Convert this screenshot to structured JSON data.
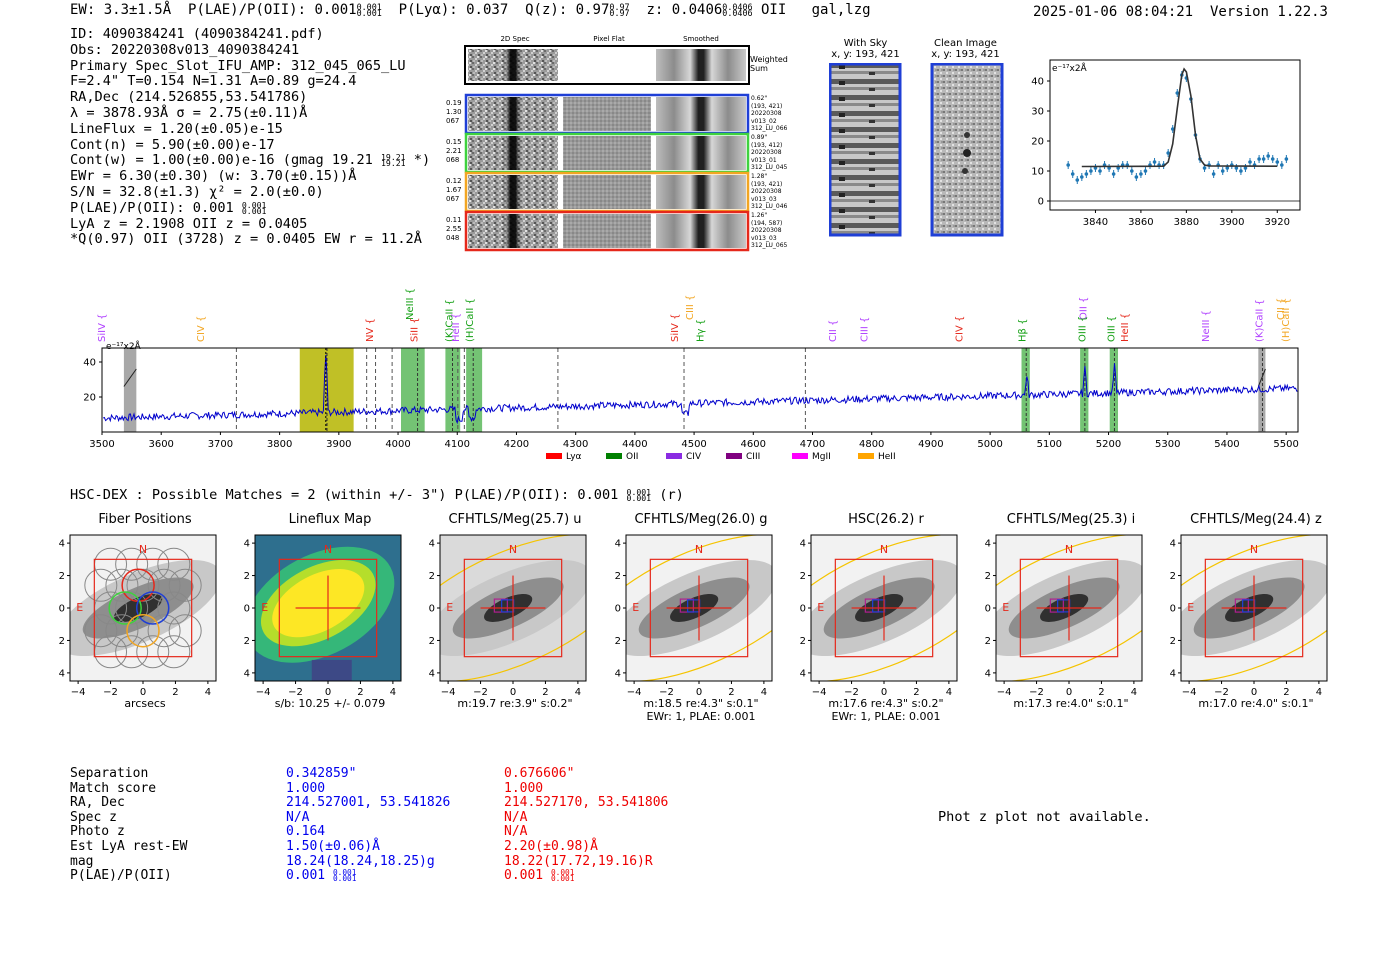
{
  "header": {
    "ew": "EW: 3.3±1.5Å",
    "plae_label": "P(LAE)/P(OII): 0.001",
    "plae_hi": "0.001",
    "plae_lo": "0.001",
    "plya": "P(Lyα): 0.037",
    "qz_label": "Q(z): 0.97",
    "qz_hi": "0.97",
    "qz_lo": "0.97",
    "z_label": "z: 0.0406",
    "z_hi": "0.0406",
    "z_lo": "0.0406",
    "z_line": "OII",
    "tags": "gal,lzg",
    "timestamp": "2025-01-06 08:04:21",
    "version": "Version 1.22.3"
  },
  "info": {
    "id": "ID: 4090384241 (4090384241.pdf)",
    "obs": "Obs: 20220308v013_4090384241",
    "primary": "Primary Spec_Slot_IFU_AMP: 312_045_065_LU",
    "seeing": "F=2.4\"  T=0.154  N=1.31  A=0.89  g=24.4",
    "radec": "RA,Dec (214.526855,53.541786)",
    "lambda": "λ = 3878.93Å  σ = 2.75(±0.11)Å",
    "lineflux": "LineFlux = 1.20(±0.05)e-15",
    "contn": "Cont(n) = 5.90(±0.00)e-17",
    "contw": "Cont(w) = 1.00(±0.00)e-16 (gmag 19.21",
    "contw_hi": "19.21",
    "contw_lo": "19.21",
    "contw_end": " *)",
    "ewr": "EWr = 6.30(±0.30) (w: 3.70(±0.15))Å",
    "sn": "S/N = 32.8(±1.3)  χ² = 2.0(±0.0)",
    "plae": "P(LAE)/P(OII): 0.001",
    "plae_hi": "0.001",
    "plae_lo": "0.001",
    "lya": "LyA z = 2.1908  OII z = 0.0405",
    "q": "*Q(0.97) OII (3728) z = 0.0405  EW r = 11.2Å"
  },
  "cutouts": {
    "col_2d": "2D Spec",
    "col_flat": "Pixel Flat",
    "col_smooth": "Smoothed",
    "weighted": "Weighted\nSum",
    "rows": [
      {
        "meta": [
          "0.19",
          "1.30",
          "067"
        ],
        "right": [
          "0.62\"",
          "(193, 421)",
          "20220308",
          "v013_02",
          "312_LU_066"
        ],
        "color": "#1f3fd6"
      },
      {
        "meta": [
          "0.15",
          "2.21",
          "068"
        ],
        "right": [
          "0.89\"",
          "(193, 412)",
          "20220308",
          "v013_01",
          "312_LU_045"
        ],
        "color": "#3ed23e"
      },
      {
        "meta": [
          "0.12",
          "1.67",
          "067"
        ],
        "right": [
          "1.28\"",
          "(193, 421)",
          "20220308",
          "v013_03",
          "312_LU_046"
        ],
        "color": "#f2a623"
      },
      {
        "meta": [
          "0.11",
          "2.55",
          "048"
        ],
        "right": [
          "1.26\"",
          "(194, 587)",
          "20220308",
          "v013_03",
          "312_LU_065"
        ],
        "color": "#e5281b"
      }
    ]
  },
  "sky": {
    "with_sky": "With Sky",
    "with_sky_xy": "x, y: 193, 421",
    "clean": "Clean Image",
    "clean_xy": "x, y: 193, 421"
  },
  "zoom_plot": {
    "unit": "e⁻¹⁷x2Å",
    "yticks": [
      "0",
      "10",
      "20",
      "30",
      "40"
    ],
    "xticks": [
      "3840",
      "3860",
      "3880",
      "3900",
      "3920"
    ]
  },
  "line_labels": [
    {
      "name": "SiIV",
      "w": 3505,
      "color": "#b040ff"
    },
    {
      "name": "CIV",
      "w": 3672,
      "color": "#f2a623"
    },
    {
      "name": "NV",
      "w": 3958,
      "color": "#e5281b"
    },
    {
      "name": "NeIII",
      "w": 4025,
      "color": "#14a014",
      "high": true
    },
    {
      "name": "SiII",
      "w": 4033,
      "color": "#e5281b"
    },
    {
      "name": "(K)CaII",
      "w": 4092,
      "color": "#14a014"
    },
    {
      "name": "HeII",
      "w": 4103,
      "color": "#b040ff"
    },
    {
      "name": "(H)CaII",
      "w": 4127,
      "color": "#14a014"
    },
    {
      "name": "SiIV",
      "w": 4473,
      "color": "#e5281b"
    },
    {
      "name": "CIII",
      "w": 4498,
      "color": "#f2a623",
      "high": true
    },
    {
      "name": "Hγ",
      "w": 4516,
      "color": "#14a014"
    },
    {
      "name": "CII",
      "w": 4740,
      "color": "#b040ff"
    },
    {
      "name": "CIII",
      "w": 4793,
      "color": "#b040ff"
    },
    {
      "name": "CIV",
      "w": 4953,
      "color": "#e5281b"
    },
    {
      "name": "Hβ",
      "w": 5060,
      "color": "#14a014"
    },
    {
      "name": "OII",
      "w": 5163,
      "color": "#b040ff",
      "high": true
    },
    {
      "name": "OIII",
      "w": 5161,
      "color": "#14a014"
    },
    {
      "name": "OIII",
      "w": 5210,
      "color": "#14a014"
    },
    {
      "name": "HeII",
      "w": 5233,
      "color": "#e5281b"
    },
    {
      "name": "NeIII",
      "w": 5370,
      "color": "#b040ff"
    },
    {
      "name": "(K)CaII",
      "w": 5460,
      "color": "#b040ff"
    },
    {
      "name": "CII",
      "w": 5496,
      "color": "#f2a623",
      "high": true
    },
    {
      "name": "(H)CaII",
      "w": 5505,
      "color": "#f2a623"
    }
  ],
  "full_spectrum": {
    "unit": "e⁻¹⁷x2Å",
    "xticks": [
      "3500",
      "3600",
      "3700",
      "3800",
      "3900",
      "4000",
      "4100",
      "4200",
      "4300",
      "4400",
      "4500",
      "4600",
      "4700",
      "4800",
      "4900",
      "5000",
      "5100",
      "5200",
      "5300",
      "5400",
      "5500"
    ],
    "yticks": [
      "20",
      "40"
    ],
    "legend": [
      {
        "label": "Lyα",
        "color": "#ff0000"
      },
      {
        "label": "OII",
        "color": "#008000"
      },
      {
        "label": "CIV",
        "color": "#8a2be2"
      },
      {
        "label": "CIII",
        "color": "#800080"
      },
      {
        "label": "MgII",
        "color": "#ff00ff"
      },
      {
        "label": "HeII",
        "color": "#ffa500"
      }
    ]
  },
  "chart_data": [
    {
      "type": "line",
      "title": "",
      "xlabel": "",
      "ylabel": "e⁻¹⁷x2Å",
      "xlim": [
        3820,
        3930
      ],
      "ylim": [
        -3,
        47
      ],
      "series": [
        {
          "name": "data",
          "x": [
            3828,
            3830,
            3832,
            3834,
            3836,
            3838,
            3840,
            3842,
            3844,
            3846,
            3848,
            3850,
            3852,
            3854,
            3856,
            3858,
            3860,
            3862,
            3864,
            3866,
            3868,
            3870,
            3872,
            3874,
            3876,
            3878,
            3880,
            3882,
            3884,
            3886,
            3888,
            3890,
            3892,
            3894,
            3896,
            3898,
            3900,
            3902,
            3904,
            3906,
            3908,
            3910,
            3912,
            3914,
            3916,
            3918,
            3920,
            3922,
            3924
          ],
          "values": [
            12,
            9,
            7,
            8,
            9,
            10,
            11,
            10,
            12,
            11,
            9,
            11,
            12,
            12,
            10,
            8,
            9,
            10,
            12,
            13,
            12,
            12,
            16,
            24,
            36,
            42,
            41,
            34,
            22,
            14,
            11,
            12,
            9,
            12,
            10,
            11,
            12,
            11,
            10,
            11,
            13,
            12,
            14,
            14,
            15,
            14,
            13,
            12,
            14
          ]
        },
        {
          "name": "fit",
          "x": [
            3834,
            3870,
            3872,
            3874,
            3876,
            3878,
            3879,
            3880,
            3882,
            3884,
            3886,
            3888,
            3890,
            3920
          ],
          "values": [
            11.5,
            11.6,
            13,
            19,
            31,
            42,
            44,
            43,
            35,
            22,
            14,
            12,
            11.7,
            11.6
          ]
        }
      ]
    },
    {
      "type": "line",
      "title": "",
      "xlabel": "",
      "ylabel": "e⁻¹⁷x2Å",
      "xlim": [
        3500,
        5520
      ],
      "ylim": [
        0,
        48
      ]
    }
  ],
  "hscdex": {
    "title": "HSC-DEX : Possible Matches = 2 (within +/- 3\")  P(LAE)/P(OII): 0.001",
    "hi": "0.001",
    "lo": "0.001",
    "band": " (r)"
  },
  "panels": [
    {
      "title": "Fiber Positions",
      "foot1": "arcsecs",
      "foot2": "",
      "kind": "fiber"
    },
    {
      "title": "Lineflux Map",
      "foot1": "s/b: 10.25 +/- 0.079",
      "foot2": "",
      "kind": "flux"
    },
    {
      "title": "CFHTLS/Meg(25.7) u",
      "foot1": "m:19.7  re:3.9\"  s:0.2\"",
      "foot2": "",
      "kind": "img",
      "noisy": true
    },
    {
      "title": "CFHTLS/Meg(26.0) g",
      "foot1": "m:18.5  re:4.3\"  s:0.1\"",
      "foot2": "EWr: 1, PLAE: 0.001",
      "kind": "img"
    },
    {
      "title": "HSC(26.2) r",
      "foot1": "m:17.6  re:4.3\"  s:0.2\"",
      "foot2": "EWr: 1, PLAE: 0.001",
      "kind": "img"
    },
    {
      "title": "CFHTLS/Meg(25.3) i",
      "foot1": "m:17.3  re:4.0\"  s:0.1\"",
      "foot2": "",
      "kind": "img"
    },
    {
      "title": "CFHTLS/Meg(24.4) z",
      "foot1": "m:17.0  re:4.0\"  s:0.1\"",
      "foot2": "",
      "kind": "img"
    }
  ],
  "panel_axes": {
    "ticks": [
      "−4",
      "−2",
      "0",
      "2",
      "4"
    ],
    "north": "N",
    "east": "E"
  },
  "matches": {
    "labels": [
      "Separation",
      "Match score",
      "RA, Dec",
      "Spec z",
      "Photo z",
      "Est LyA rest-EW",
      "mag",
      "P(LAE)/P(OII)"
    ],
    "a": [
      "0.342859\"",
      "1.000",
      "214.527001, 53.541826",
      "N/A",
      "0.164",
      "1.50(±0.06)Å",
      "18.24(18.24,18.25)g",
      "0.001"
    ],
    "a_hi": "0.001",
    "a_lo": "0.001",
    "b": [
      "0.676606\"",
      "1.000",
      "214.527170, 53.541806",
      "N/A",
      "N/A",
      "2.20(±0.98)Å",
      "18.22(17.72,19.16)R",
      "0.001"
    ],
    "b_hi": "0.001",
    "b_lo": "0.001",
    "photz_msg": "Phot z plot not available."
  }
}
